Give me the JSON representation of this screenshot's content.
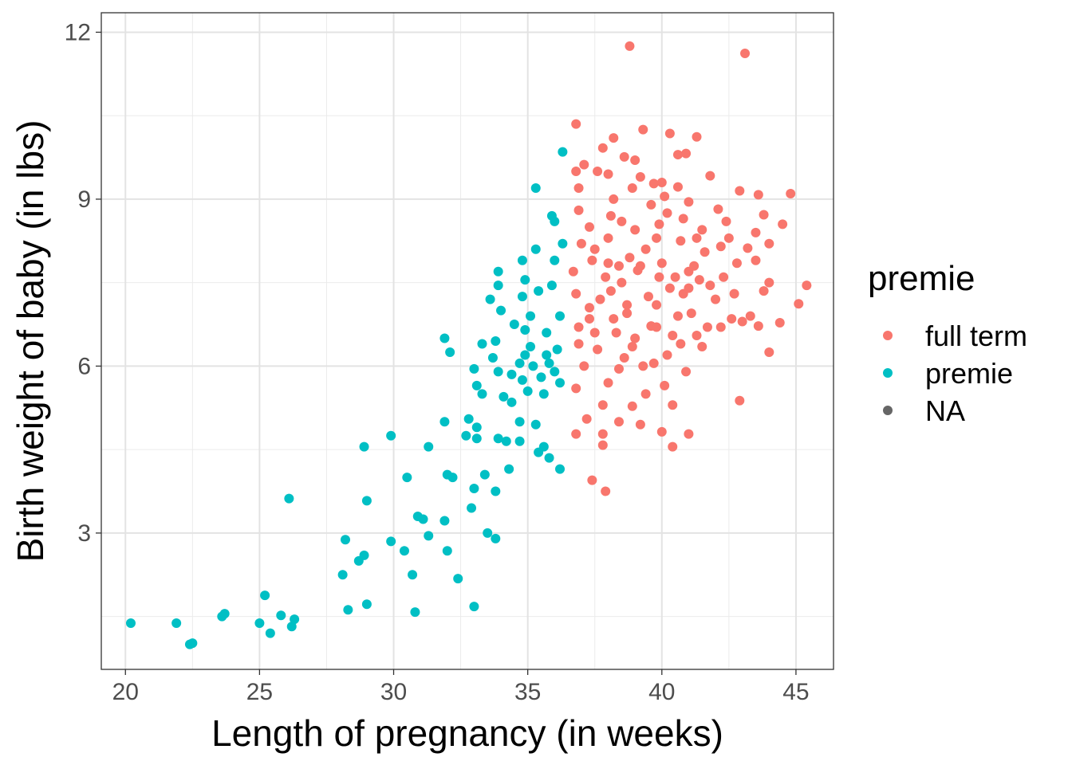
{
  "chart_data": {
    "type": "scatter",
    "title": "",
    "xlabel": "Length of pregnancy (in weeks)",
    "ylabel": "Birth weight of baby (in lbs)",
    "xlim": [
      19.1,
      46.4
    ],
    "ylim": [
      0.55,
      12.35
    ],
    "x_ticks": [
      20,
      25,
      30,
      35,
      40,
      45
    ],
    "y_ticks": [
      3,
      6,
      9,
      12
    ],
    "grid": true,
    "legend": {
      "title": "premie",
      "placement": "right",
      "entries": [
        {
          "label": "full term",
          "color": "#F8766D"
        },
        {
          "label": "premie",
          "color": "#00BFC4"
        },
        {
          "label": "NA",
          "color": "#666666"
        }
      ]
    },
    "series": [
      {
        "name": "full term",
        "color": "#F8766D",
        "points": [
          [
            38.8,
            11.75
          ],
          [
            43.1,
            11.62
          ],
          [
            36.8,
            10.35
          ],
          [
            39.3,
            10.25
          ],
          [
            40.3,
            10.18
          ],
          [
            41.3,
            10.12
          ],
          [
            38.2,
            10.1
          ],
          [
            37.8,
            9.92
          ],
          [
            40.9,
            9.82
          ],
          [
            40.6,
            9.8
          ],
          [
            38.6,
            9.76
          ],
          [
            39.0,
            9.7
          ],
          [
            37.1,
            9.62
          ],
          [
            36.8,
            9.5
          ],
          [
            37.6,
            9.5
          ],
          [
            38.0,
            9.45
          ],
          [
            39.2,
            9.4
          ],
          [
            41.8,
            9.42
          ],
          [
            36.9,
            9.2
          ],
          [
            39.7,
            9.28
          ],
          [
            40.6,
            9.22
          ],
          [
            42.9,
            9.15
          ],
          [
            43.6,
            9.08
          ],
          [
            44.8,
            9.1
          ],
          [
            36.9,
            8.8
          ],
          [
            38.2,
            9.0
          ],
          [
            40.1,
            9.05
          ],
          [
            41.0,
            8.95
          ],
          [
            42.1,
            8.82
          ],
          [
            43.8,
            8.72
          ],
          [
            37.3,
            8.5
          ],
          [
            38.5,
            8.6
          ],
          [
            39.9,
            8.55
          ],
          [
            41.5,
            8.45
          ],
          [
            42.4,
            8.6
          ],
          [
            43.5,
            8.4
          ],
          [
            44.5,
            8.55
          ],
          [
            44.0,
            8.2
          ],
          [
            42.2,
            8.15
          ],
          [
            43.2,
            8.12
          ],
          [
            37.0,
            8.2
          ],
          [
            38.0,
            8.3
          ],
          [
            39.4,
            8.1
          ],
          [
            40.7,
            8.25
          ],
          [
            41.6,
            8.05
          ],
          [
            37.4,
            7.9
          ],
          [
            38.8,
            7.95
          ],
          [
            40.0,
            7.85
          ],
          [
            41.2,
            7.8
          ],
          [
            42.8,
            7.85
          ],
          [
            43.5,
            7.9
          ],
          [
            36.7,
            7.7
          ],
          [
            37.9,
            7.6
          ],
          [
            39.1,
            7.72
          ],
          [
            40.5,
            7.6
          ],
          [
            41.4,
            7.55
          ],
          [
            42.3,
            7.6
          ],
          [
            44.0,
            7.5
          ],
          [
            45.4,
            7.45
          ],
          [
            36.8,
            7.3
          ],
          [
            38.1,
            7.35
          ],
          [
            39.5,
            7.25
          ],
          [
            40.8,
            7.3
          ],
          [
            42.0,
            7.2
          ],
          [
            43.8,
            7.35
          ],
          [
            45.1,
            7.12
          ],
          [
            37.3,
            7.05
          ],
          [
            38.7,
            6.95
          ],
          [
            39.8,
            7.1
          ],
          [
            41.1,
            6.95
          ],
          [
            42.6,
            6.85
          ],
          [
            43.3,
            6.9
          ],
          [
            44.4,
            6.78
          ],
          [
            36.9,
            6.7
          ],
          [
            38.3,
            6.6
          ],
          [
            39.6,
            6.72
          ],
          [
            40.4,
            6.55
          ],
          [
            41.7,
            6.7
          ],
          [
            43.6,
            6.72
          ],
          [
            37.6,
            6.3
          ],
          [
            38.9,
            6.35
          ],
          [
            40.2,
            6.2
          ],
          [
            41.5,
            6.35
          ],
          [
            44.0,
            6.25
          ],
          [
            37.1,
            6.0
          ],
          [
            38.4,
            5.95
          ],
          [
            39.7,
            6.05
          ],
          [
            40.9,
            5.9
          ],
          [
            36.8,
            5.6
          ],
          [
            38.0,
            5.7
          ],
          [
            39.4,
            5.5
          ],
          [
            40.1,
            5.65
          ],
          [
            42.9,
            5.38
          ],
          [
            37.8,
            5.3
          ],
          [
            38.9,
            5.28
          ],
          [
            40.4,
            5.3
          ],
          [
            37.2,
            5.05
          ],
          [
            38.4,
            5.0
          ],
          [
            39.2,
            4.95
          ],
          [
            40.0,
            4.82
          ],
          [
            41.0,
            4.78
          ],
          [
            36.8,
            4.78
          ],
          [
            37.8,
            4.78
          ],
          [
            37.8,
            4.58
          ],
          [
            40.4,
            4.55
          ],
          [
            37.4,
            3.95
          ],
          [
            37.9,
            3.75
          ],
          [
            37.5,
            8.1
          ],
          [
            38.5,
            7.5
          ],
          [
            39.2,
            7.8
          ],
          [
            39.8,
            8.3
          ],
          [
            40.3,
            7.4
          ],
          [
            41.0,
            7.7
          ],
          [
            37.7,
            7.2
          ],
          [
            38.2,
            6.85
          ],
          [
            39.0,
            6.5
          ],
          [
            40.6,
            6.9
          ],
          [
            41.8,
            7.45
          ],
          [
            38.1,
            8.7
          ],
          [
            39.6,
            8.9
          ],
          [
            40.8,
            8.65
          ],
          [
            38.6,
            6.15
          ],
          [
            39.3,
            6.0
          ],
          [
            40.7,
            6.4
          ],
          [
            37.5,
            6.6
          ],
          [
            38.0,
            7.85
          ],
          [
            39.0,
            8.45
          ],
          [
            40.2,
            8.75
          ],
          [
            41.3,
            8.3
          ],
          [
            42.5,
            8.3
          ],
          [
            42.7,
            7.3
          ],
          [
            43.0,
            6.8
          ],
          [
            36.9,
            6.4
          ],
          [
            37.3,
            6.85
          ],
          [
            38.7,
            7.1
          ],
          [
            39.8,
            6.7
          ],
          [
            41.3,
            6.55
          ],
          [
            42.2,
            6.7
          ],
          [
            38.4,
            7.8
          ],
          [
            39.9,
            7.6
          ],
          [
            41.0,
            7.4
          ],
          [
            40.0,
            9.3
          ],
          [
            38.9,
            9.2
          ]
        ]
      },
      {
        "name": "premie",
        "color": "#00BFC4",
        "points": [
          [
            36.3,
            9.85
          ],
          [
            35.3,
            9.2
          ],
          [
            35.9,
            8.7
          ],
          [
            36.0,
            8.6
          ],
          [
            35.3,
            8.1
          ],
          [
            34.8,
            7.9
          ],
          [
            36.0,
            7.9
          ],
          [
            36.3,
            8.2
          ],
          [
            33.9,
            7.7
          ],
          [
            34.9,
            7.55
          ],
          [
            33.9,
            7.45
          ],
          [
            35.9,
            7.45
          ],
          [
            33.6,
            7.2
          ],
          [
            34.8,
            7.25
          ],
          [
            35.4,
            7.35
          ],
          [
            34.0,
            7.0
          ],
          [
            35.1,
            6.9
          ],
          [
            36.2,
            6.9
          ],
          [
            34.9,
            6.65
          ],
          [
            35.7,
            6.6
          ],
          [
            31.9,
            6.5
          ],
          [
            33.3,
            6.4
          ],
          [
            33.8,
            6.45
          ],
          [
            35.1,
            6.35
          ],
          [
            36.1,
            6.3
          ],
          [
            32.1,
            6.25
          ],
          [
            33.7,
            6.15
          ],
          [
            34.7,
            6.05
          ],
          [
            35.2,
            6.0
          ],
          [
            35.8,
            6.05
          ],
          [
            33.9,
            5.9
          ],
          [
            34.4,
            5.85
          ],
          [
            34.8,
            5.75
          ],
          [
            35.5,
            5.8
          ],
          [
            36.2,
            5.7
          ],
          [
            33.1,
            5.65
          ],
          [
            33.3,
            5.5
          ],
          [
            34.1,
            5.45
          ],
          [
            35.0,
            5.55
          ],
          [
            35.6,
            5.5
          ],
          [
            34.4,
            5.35
          ],
          [
            31.9,
            5.0
          ],
          [
            32.8,
            5.05
          ],
          [
            33.1,
            4.9
          ],
          [
            34.7,
            5.0
          ],
          [
            35.3,
            4.95
          ],
          [
            32.7,
            4.75
          ],
          [
            33.1,
            4.7
          ],
          [
            33.9,
            4.7
          ],
          [
            34.2,
            4.65
          ],
          [
            34.7,
            4.65
          ],
          [
            35.6,
            4.55
          ],
          [
            35.4,
            4.45
          ],
          [
            35.8,
            4.35
          ],
          [
            36.2,
            4.15
          ],
          [
            28.9,
            4.55
          ],
          [
            29.9,
            4.75
          ],
          [
            31.3,
            4.55
          ],
          [
            32.0,
            4.05
          ],
          [
            32.2,
            4.0
          ],
          [
            30.5,
            4.0
          ],
          [
            33.4,
            4.05
          ],
          [
            34.3,
            4.15
          ],
          [
            33.8,
            3.75
          ],
          [
            33.0,
            3.8
          ],
          [
            26.1,
            3.62
          ],
          [
            29.0,
            3.58
          ],
          [
            30.9,
            3.3
          ],
          [
            31.1,
            3.25
          ],
          [
            31.9,
            3.22
          ],
          [
            32.9,
            3.45
          ],
          [
            33.5,
            3.0
          ],
          [
            33.8,
            2.9
          ],
          [
            28.2,
            2.88
          ],
          [
            29.9,
            2.85
          ],
          [
            31.3,
            2.95
          ],
          [
            32.0,
            2.68
          ],
          [
            30.4,
            2.68
          ],
          [
            28.7,
            2.5
          ],
          [
            28.9,
            2.6
          ],
          [
            28.1,
            2.25
          ],
          [
            30.7,
            2.25
          ],
          [
            32.4,
            2.18
          ],
          [
            25.2,
            1.88
          ],
          [
            29.0,
            1.72
          ],
          [
            28.3,
            1.62
          ],
          [
            30.8,
            1.58
          ],
          [
            33.0,
            1.68
          ],
          [
            25.8,
            1.52
          ],
          [
            23.6,
            1.5
          ],
          [
            23.7,
            1.55
          ],
          [
            26.3,
            1.45
          ],
          [
            20.2,
            1.38
          ],
          [
            21.9,
            1.38
          ],
          [
            25.0,
            1.38
          ],
          [
            26.2,
            1.32
          ],
          [
            25.4,
            1.2
          ],
          [
            22.4,
            1.0
          ],
          [
            22.5,
            1.02
          ],
          [
            34.5,
            6.75
          ],
          [
            35.7,
            6.2
          ],
          [
            36.0,
            5.9
          ],
          [
            34.9,
            6.2
          ],
          [
            33.0,
            5.95
          ]
        ]
      }
    ]
  }
}
